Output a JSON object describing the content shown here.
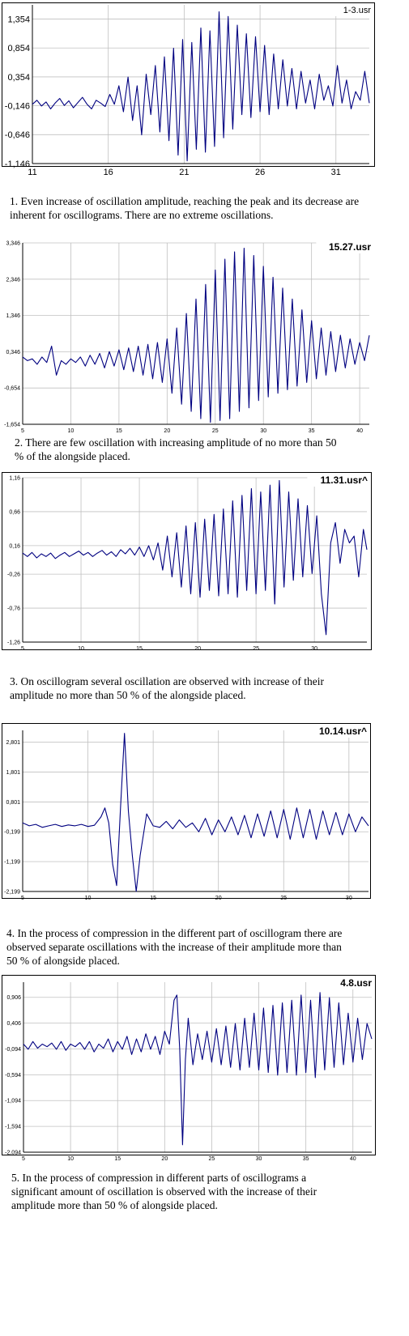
{
  "chart_data": [
    {
      "type": "line",
      "title": "1-3.usr",
      "xlim": [
        11,
        33.2
      ],
      "ylim": [
        -1.146,
        1.6
      ],
      "x_ticks": [
        11,
        16,
        21,
        26,
        31
      ],
      "y_ticks": [
        -1.146,
        -0.646,
        -0.146,
        0.354,
        0.854,
        1.354
      ],
      "y_tick_labels": [
        "-1,146",
        "-0,646",
        "-0,146",
        "0,354",
        "0,854",
        "1,354"
      ],
      "grid": true,
      "series": [
        {
          "color": "#000080",
          "x": [
            11.0,
            11.3,
            11.6,
            11.9,
            12.2,
            12.5,
            12.8,
            13.1,
            13.4,
            13.7,
            14.0,
            14.3,
            14.6,
            14.9,
            15.2,
            15.5,
            15.8,
            16.1,
            16.4,
            16.7,
            17.0,
            17.3,
            17.6,
            17.9,
            18.2,
            18.5,
            18.8,
            19.1,
            19.4,
            19.7,
            20.0,
            20.3,
            20.6,
            20.9,
            21.2,
            21.5,
            21.8,
            22.1,
            22.4,
            22.7,
            23.0,
            23.3,
            23.6,
            23.9,
            24.2,
            24.5,
            24.8,
            25.1,
            25.4,
            25.7,
            26.0,
            26.3,
            26.6,
            26.9,
            27.2,
            27.5,
            27.8,
            28.1,
            28.4,
            28.7,
            29.0,
            29.3,
            29.6,
            29.9,
            30.2,
            30.5,
            30.8,
            31.1,
            31.4,
            31.7,
            32.0,
            32.3,
            32.6,
            32.9,
            33.2
          ],
          "values": [
            -0.12,
            -0.05,
            -0.15,
            -0.08,
            -0.2,
            -0.1,
            -0.02,
            -0.14,
            -0.06,
            -0.18,
            -0.09,
            0.0,
            -0.12,
            -0.2,
            -0.05,
            -0.1,
            -0.16,
            0.05,
            -0.12,
            0.2,
            -0.25,
            0.35,
            -0.4,
            0.2,
            -0.65,
            0.4,
            -0.3,
            0.55,
            -0.6,
            0.7,
            -0.75,
            0.85,
            -1.0,
            1.0,
            -1.1,
            0.95,
            -0.9,
            1.2,
            -0.95,
            1.15,
            -0.85,
            1.48,
            -0.7,
            1.4,
            -0.55,
            1.25,
            -0.3,
            1.1,
            -0.35,
            1.05,
            -0.25,
            0.9,
            -0.3,
            0.75,
            -0.2,
            0.65,
            -0.15,
            0.5,
            -0.2,
            0.45,
            -0.1,
            0.3,
            -0.2,
            0.4,
            -0.05,
            0.2,
            -0.15,
            0.55,
            -0.1,
            0.3,
            -0.2,
            0.1,
            -0.05,
            0.45,
            -0.1
          ]
        }
      ]
    },
    {
      "type": "line",
      "title": "15.27.usr",
      "xlim": [
        5,
        41
      ],
      "ylim": [
        -1.654,
        3.346
      ],
      "x_ticks": [
        5,
        10,
        15,
        20,
        25,
        30,
        35,
        40
      ],
      "y_ticks": [
        -1.654,
        -0.654,
        0.346,
        1.346,
        2.346,
        3.346
      ],
      "y_tick_labels": [
        "-1,654",
        "-0,654",
        "0,346",
        "1,346",
        "2,346",
        "3,346"
      ],
      "grid": true,
      "series": [
        {
          "color": "#000080",
          "x": [
            5.0,
            5.5,
            6.0,
            6.5,
            7.0,
            7.5,
            8.0,
            8.5,
            9.0,
            9.5,
            10.0,
            10.5,
            11.0,
            11.5,
            12.0,
            12.5,
            13.0,
            13.5,
            14.0,
            14.5,
            15.0,
            15.5,
            16.0,
            16.5,
            17.0,
            17.5,
            18.0,
            18.5,
            19.0,
            19.5,
            20.0,
            20.5,
            21.0,
            21.5,
            22.0,
            22.5,
            23.0,
            23.5,
            24.0,
            24.5,
            25.0,
            25.5,
            26.0,
            26.5,
            27.0,
            27.5,
            28.0,
            28.5,
            29.0,
            29.5,
            30.0,
            30.5,
            31.0,
            31.5,
            32.0,
            32.5,
            33.0,
            33.5,
            34.0,
            34.5,
            35.0,
            35.5,
            36.0,
            36.5,
            37.0,
            37.5,
            38.0,
            38.5,
            39.0,
            39.5,
            40.0,
            40.5,
            41.0
          ],
          "values": [
            0.2,
            0.1,
            0.15,
            0.0,
            0.2,
            0.05,
            0.5,
            -0.3,
            0.1,
            0.0,
            0.15,
            0.05,
            0.2,
            -0.05,
            0.25,
            0.0,
            0.3,
            -0.1,
            0.35,
            -0.05,
            0.4,
            -0.15,
            0.45,
            -0.2,
            0.5,
            -0.3,
            0.55,
            -0.4,
            0.6,
            -0.5,
            0.7,
            -0.8,
            1.0,
            -1.1,
            1.4,
            -1.3,
            1.8,
            -1.5,
            2.2,
            -1.6,
            2.6,
            -1.55,
            2.9,
            -1.5,
            3.1,
            -1.3,
            3.2,
            -1.2,
            3.0,
            -1.0,
            2.7,
            -0.9,
            2.4,
            -0.8,
            2.1,
            -0.7,
            1.8,
            -0.6,
            1.5,
            -0.5,
            1.2,
            -0.4,
            1.0,
            -0.3,
            0.9,
            -0.2,
            0.8,
            -0.1,
            0.7,
            0.0,
            0.6,
            0.1,
            0.8
          ]
        }
      ]
    },
    {
      "type": "line",
      "title": "11.31.usr^",
      "xlim": [
        5,
        34.5
      ],
      "ylim": [
        -1.26,
        1.16
      ],
      "x_ticks": [
        5,
        10,
        15,
        20,
        25,
        30
      ],
      "y_ticks": [
        -1.26,
        -0.76,
        -0.26,
        0.16,
        0.66,
        1.16
      ],
      "y_tick_labels": [
        "-1,26",
        "-0,76",
        "-0,26",
        "0,16",
        "0,66",
        "1,16"
      ],
      "grid": true,
      "series": [
        {
          "color": "#000080",
          "x": [
            5.0,
            5.4,
            5.8,
            6.2,
            6.6,
            7.0,
            7.4,
            7.8,
            8.2,
            8.6,
            9.0,
            9.4,
            9.8,
            10.2,
            10.6,
            11.0,
            11.4,
            11.8,
            12.2,
            12.6,
            13.0,
            13.4,
            13.8,
            14.2,
            14.6,
            15.0,
            15.4,
            15.8,
            16.2,
            16.6,
            17.0,
            17.4,
            17.8,
            18.2,
            18.6,
            19.0,
            19.4,
            19.8,
            20.2,
            20.6,
            21.0,
            21.4,
            21.8,
            22.2,
            22.6,
            23.0,
            23.4,
            23.8,
            24.2,
            24.6,
            25.0,
            25.4,
            25.8,
            26.2,
            26.6,
            27.0,
            27.4,
            27.8,
            28.2,
            28.6,
            29.0,
            29.4,
            29.8,
            30.2,
            30.6,
            31.0,
            31.4,
            31.8,
            32.2,
            32.6,
            33.0,
            33.4,
            33.8,
            34.2,
            34.5
          ],
          "values": [
            0.05,
            0.0,
            0.06,
            -0.02,
            0.04,
            0.0,
            0.05,
            -0.03,
            0.02,
            0.06,
            0.0,
            0.04,
            0.08,
            0.02,
            0.06,
            0.0,
            0.05,
            0.09,
            0.02,
            0.07,
            0.0,
            0.1,
            0.04,
            0.12,
            0.02,
            0.14,
            0.0,
            0.16,
            -0.05,
            0.2,
            -0.2,
            0.3,
            -0.3,
            0.35,
            -0.45,
            0.45,
            -0.55,
            0.5,
            -0.6,
            0.55,
            -0.5,
            0.62,
            -0.58,
            0.7,
            -0.55,
            0.82,
            -0.6,
            0.9,
            -0.5,
            1.0,
            -0.55,
            0.95,
            -0.5,
            1.05,
            -0.7,
            1.12,
            -0.45,
            0.95,
            -0.35,
            0.85,
            -0.3,
            0.75,
            -0.25,
            0.6,
            -0.55,
            -1.15,
            0.2,
            0.5,
            -0.1,
            0.4,
            0.2,
            0.3,
            -0.3,
            0.4,
            0.1
          ]
        }
      ]
    },
    {
      "type": "line",
      "title": "10.14.usr^",
      "xlim": [
        5,
        31.5
      ],
      "ylim": [
        -2.199,
        3.2
      ],
      "x_ticks": [
        5,
        10,
        15,
        20,
        25,
        30
      ],
      "y_ticks": [
        -2.199,
        -1.199,
        -0.199,
        0.801,
        1.801,
        2.801
      ],
      "y_tick_labels": [
        "-2,199",
        "-1,199",
        "-0,199",
        "0,801",
        "1,801",
        "2,801"
      ],
      "grid": true,
      "series": [
        {
          "color": "#000080",
          "x": [
            5.0,
            5.5,
            6.0,
            6.5,
            7.0,
            7.5,
            8.0,
            8.5,
            9.0,
            9.5,
            10.0,
            10.5,
            11.0,
            11.3,
            11.6,
            11.9,
            12.2,
            12.5,
            12.8,
            13.1,
            13.4,
            13.7,
            14.0,
            14.5,
            15.0,
            15.5,
            16.0,
            16.5,
            17.0,
            17.5,
            18.0,
            18.5,
            19.0,
            19.5,
            20.0,
            20.5,
            21.0,
            21.5,
            22.0,
            22.5,
            23.0,
            23.5,
            24.0,
            24.5,
            25.0,
            25.5,
            26.0,
            26.5,
            27.0,
            27.5,
            28.0,
            28.5,
            29.0,
            29.5,
            30.0,
            30.5,
            31.0,
            31.5
          ],
          "values": [
            0.1,
            0.0,
            0.05,
            -0.05,
            0.0,
            0.05,
            -0.02,
            0.03,
            0.0,
            0.05,
            -0.02,
            0.02,
            0.3,
            0.6,
            0.1,
            -1.3,
            -2.0,
            0.6,
            3.1,
            0.5,
            -1.0,
            -2.2,
            -1.0,
            0.4,
            0.0,
            -0.05,
            0.15,
            -0.1,
            0.2,
            -0.05,
            0.1,
            -0.2,
            0.25,
            -0.3,
            0.2,
            -0.2,
            0.3,
            -0.3,
            0.35,
            -0.4,
            0.4,
            -0.35,
            0.5,
            -0.4,
            0.55,
            -0.45,
            0.6,
            -0.4,
            0.55,
            -0.45,
            0.5,
            -0.3,
            0.45,
            -0.3,
            0.4,
            -0.2,
            0.3,
            0.0
          ]
        }
      ]
    },
    {
      "type": "line",
      "title": "4.8.usr",
      "xlim": [
        5,
        42
      ],
      "ylim": [
        -2.094,
        1.2
      ],
      "x_ticks": [
        5,
        10,
        15,
        20,
        25,
        30,
        35,
        40
      ],
      "y_ticks": [
        -2.094,
        -1.594,
        -1.094,
        -0.594,
        -0.094,
        0.406,
        0.906
      ],
      "y_tick_labels": [
        "-2,094",
        "-1,594",
        "-1,094",
        "-0,594",
        "-0,094",
        "0,406",
        "0,906"
      ],
      "grid": true,
      "series": [
        {
          "color": "#000080",
          "x": [
            5.0,
            5.5,
            6.0,
            6.5,
            7.0,
            7.5,
            8.0,
            8.5,
            9.0,
            9.5,
            10.0,
            10.5,
            11.0,
            11.5,
            12.0,
            12.5,
            13.0,
            13.5,
            14.0,
            14.5,
            15.0,
            15.5,
            16.0,
            16.5,
            17.0,
            17.5,
            18.0,
            18.5,
            19.0,
            19.5,
            20.0,
            20.5,
            21.0,
            21.3,
            21.6,
            21.9,
            22.2,
            22.5,
            23.0,
            23.5,
            24.0,
            24.5,
            25.0,
            25.5,
            26.0,
            26.5,
            27.0,
            27.5,
            28.0,
            28.5,
            29.0,
            29.5,
            30.0,
            30.5,
            31.0,
            31.5,
            32.0,
            32.5,
            33.0,
            33.5,
            34.0,
            34.5,
            35.0,
            35.5,
            36.0,
            36.5,
            37.0,
            37.5,
            38.0,
            38.5,
            39.0,
            39.5,
            40.0,
            40.5,
            41.0,
            41.5,
            42.0
          ],
          "values": [
            0.0,
            -0.1,
            0.05,
            -0.08,
            0.0,
            -0.05,
            0.02,
            -0.1,
            0.05,
            -0.12,
            0.0,
            -0.05,
            0.03,
            -0.1,
            0.05,
            -0.15,
            0.0,
            -0.08,
            0.1,
            -0.15,
            0.05,
            -0.1,
            0.15,
            -0.2,
            0.1,
            -0.15,
            0.2,
            -0.1,
            0.15,
            -0.2,
            0.25,
            0.0,
            0.85,
            0.95,
            -0.1,
            -1.95,
            -0.3,
            0.5,
            -0.4,
            0.2,
            -0.3,
            0.25,
            -0.35,
            0.3,
            -0.4,
            0.35,
            -0.45,
            0.4,
            -0.5,
            0.5,
            -0.45,
            0.6,
            -0.5,
            0.7,
            -0.55,
            0.75,
            -0.6,
            0.8,
            -0.55,
            0.85,
            -0.6,
            0.95,
            -0.55,
            0.85,
            -0.65,
            1.0,
            -0.5,
            0.9,
            -0.45,
            0.8,
            -0.4,
            0.6,
            -0.35,
            0.5,
            -0.3,
            0.4,
            0.1
          ]
        }
      ]
    }
  ],
  "captions": [
    "1. Even increase of oscillation amplitude, reaching the peak and its decrease are inherent for oscillograms. There are no extreme oscillations.",
    "2. There are few oscillation with increasing amplitude of no more than 50 % of the alongside placed.",
    "3. On oscillogram several oscillation are observed with increase of their amplitude  no more than 50 % of the alongside placed.",
    "4. In the process of compression in the different part of oscillogram there are observed separate oscillations with the increase of their amplitude more than 50 % of alongside placed.",
    "5. In the process of compression in different parts of oscillograms a significant amount of oscillation is observed with the increase of their amplitude more than 50 % of alongside placed."
  ]
}
